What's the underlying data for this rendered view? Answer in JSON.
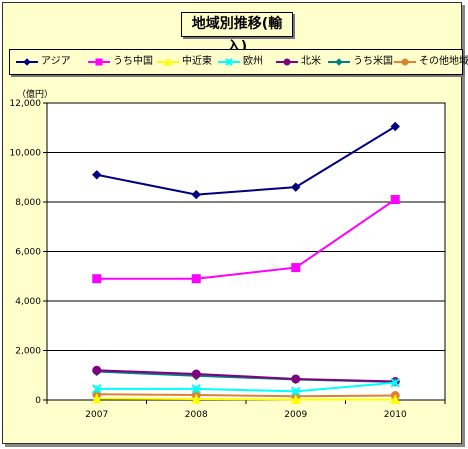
{
  "title": "地域別推移(輸入)",
  "unit_label": "（億円）",
  "chart_data": {
    "type": "line",
    "title": "地域別推移(輸入)",
    "ylabel": "（億円）",
    "xlabel": "",
    "x": [
      "2007",
      "2008",
      "2009",
      "2010"
    ],
    "ylim": [
      0,
      12000
    ],
    "yticks": [
      0,
      2000,
      4000,
      6000,
      8000,
      10000,
      12000
    ],
    "ytick_labels": [
      "0",
      "2,000",
      "4,000",
      "6,000",
      "8,000",
      "10,000",
      "12,000"
    ],
    "grid": "horizontal",
    "legend": "top",
    "series": [
      {
        "name": "アジア",
        "color": "#000080",
        "marker": "diamond",
        "values": [
          9100,
          8300,
          8600,
          11050
        ]
      },
      {
        "name": "うち中国",
        "color": "#ff00ff",
        "marker": "square",
        "values": [
          4900,
          4900,
          5350,
          8100
        ]
      },
      {
        "name": "中近東",
        "color": "#ffff00",
        "marker": "triangle",
        "values": [
          60,
          40,
          20,
          20
        ]
      },
      {
        "name": "欧州",
        "color": "#00ffff",
        "marker": "x",
        "values": [
          450,
          450,
          350,
          700
        ]
      },
      {
        "name": "北米",
        "color": "#800080",
        "marker": "circle",
        "values": [
          1200,
          1050,
          850,
          750
        ]
      },
      {
        "name": "うち米国",
        "color": "#008080",
        "marker": "diamond",
        "values": [
          1150,
          980,
          830,
          730
        ]
      },
      {
        "name": "その他地域",
        "color": "#e08030",
        "marker": "circle",
        "values": [
          230,
          200,
          150,
          180
        ]
      }
    ]
  }
}
